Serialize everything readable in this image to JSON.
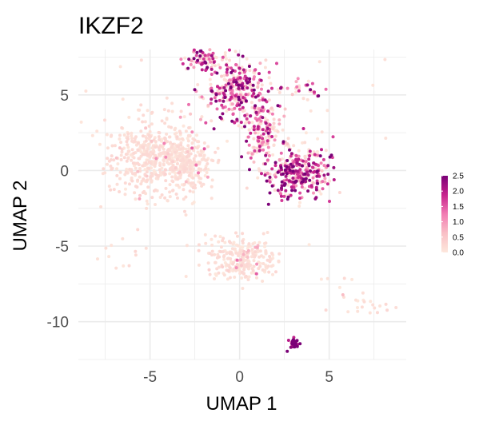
{
  "chart_data": {
    "type": "scatter",
    "title": "IKZF2",
    "xlabel": "UMAP 1",
    "ylabel": "UMAP 2",
    "xlim": [
      -9,
      9.3
    ],
    "ylim": [
      -12.5,
      8
    ],
    "x_ticks": [
      -5,
      0,
      5
    ],
    "x_tick_labels": [
      "-5",
      "0",
      "5"
    ],
    "y_ticks": [
      -10,
      -5,
      0,
      5
    ],
    "y_tick_labels": [
      "-10",
      "-5",
      "0",
      "5"
    ],
    "grid": true,
    "legend": {
      "position": "right",
      "type": "colorbar",
      "min": 0,
      "max": 2.5,
      "ticks": [
        2.5,
        2.0,
        1.5,
        1.0,
        0.5,
        0.0
      ],
      "tick_labels": [
        "2.5",
        "2.0",
        "1.5",
        "1.0",
        "0.5",
        "0.0"
      ]
    },
    "colors": {
      "low": "#fde7dc",
      "mid": "#f27db3",
      "high": "#7a0177",
      "grid": "#ebebeb"
    },
    "clusters": [
      {
        "cx": -4.8,
        "cy": 0.9,
        "sx": 1.3,
        "sy": 1.3,
        "n": 520,
        "expr": 0.18
      },
      {
        "cx": -2.8,
        "cy": 0.2,
        "sx": 0.6,
        "sy": 0.8,
        "n": 160,
        "expr": 0.15
      },
      {
        "cx": -0.2,
        "cy": 5.3,
        "sx": 0.9,
        "sy": 0.9,
        "n": 280,
        "expr": 1.6
      },
      {
        "cx": -2.0,
        "cy": 7.4,
        "sx": 0.6,
        "sy": 0.35,
        "n": 70,
        "expr": 1.7
      },
      {
        "cx": 1.3,
        "cy": 2.5,
        "sx": 0.5,
        "sy": 0.9,
        "n": 160,
        "expr": 1.2
      },
      {
        "cx": 3.2,
        "cy": -0.1,
        "sx": 1.0,
        "sy": 0.8,
        "n": 320,
        "expr": 1.7
      },
      {
        "cx": 0.1,
        "cy": -5.8,
        "sx": 1.0,
        "sy": 0.7,
        "n": 260,
        "expr": 0.3
      },
      {
        "cx": 3.0,
        "cy": -11.4,
        "sx": 0.15,
        "sy": 0.2,
        "n": 30,
        "expr": 2.4
      },
      {
        "cx": 3.5,
        "cy": 5.3,
        "sx": 0.6,
        "sy": 0.3,
        "n": 25,
        "expr": 1.6
      },
      {
        "cx": 7.2,
        "cy": -8.9,
        "sx": 0.8,
        "sy": 0.3,
        "n": 18,
        "expr": 0.7
      },
      {
        "cx": 5.5,
        "cy": -7.8,
        "sx": 0.8,
        "sy": 1.0,
        "n": 8,
        "expr": 0.6
      },
      {
        "cx": -6.5,
        "cy": -5.3,
        "sx": 0.6,
        "sy": 0.6,
        "n": 12,
        "expr": 0.3
      },
      {
        "cx": -0.2,
        "cy": 5.0,
        "sx": 4.0,
        "sy": 2.5,
        "n": 70,
        "expr": 0.2
      }
    ]
  }
}
